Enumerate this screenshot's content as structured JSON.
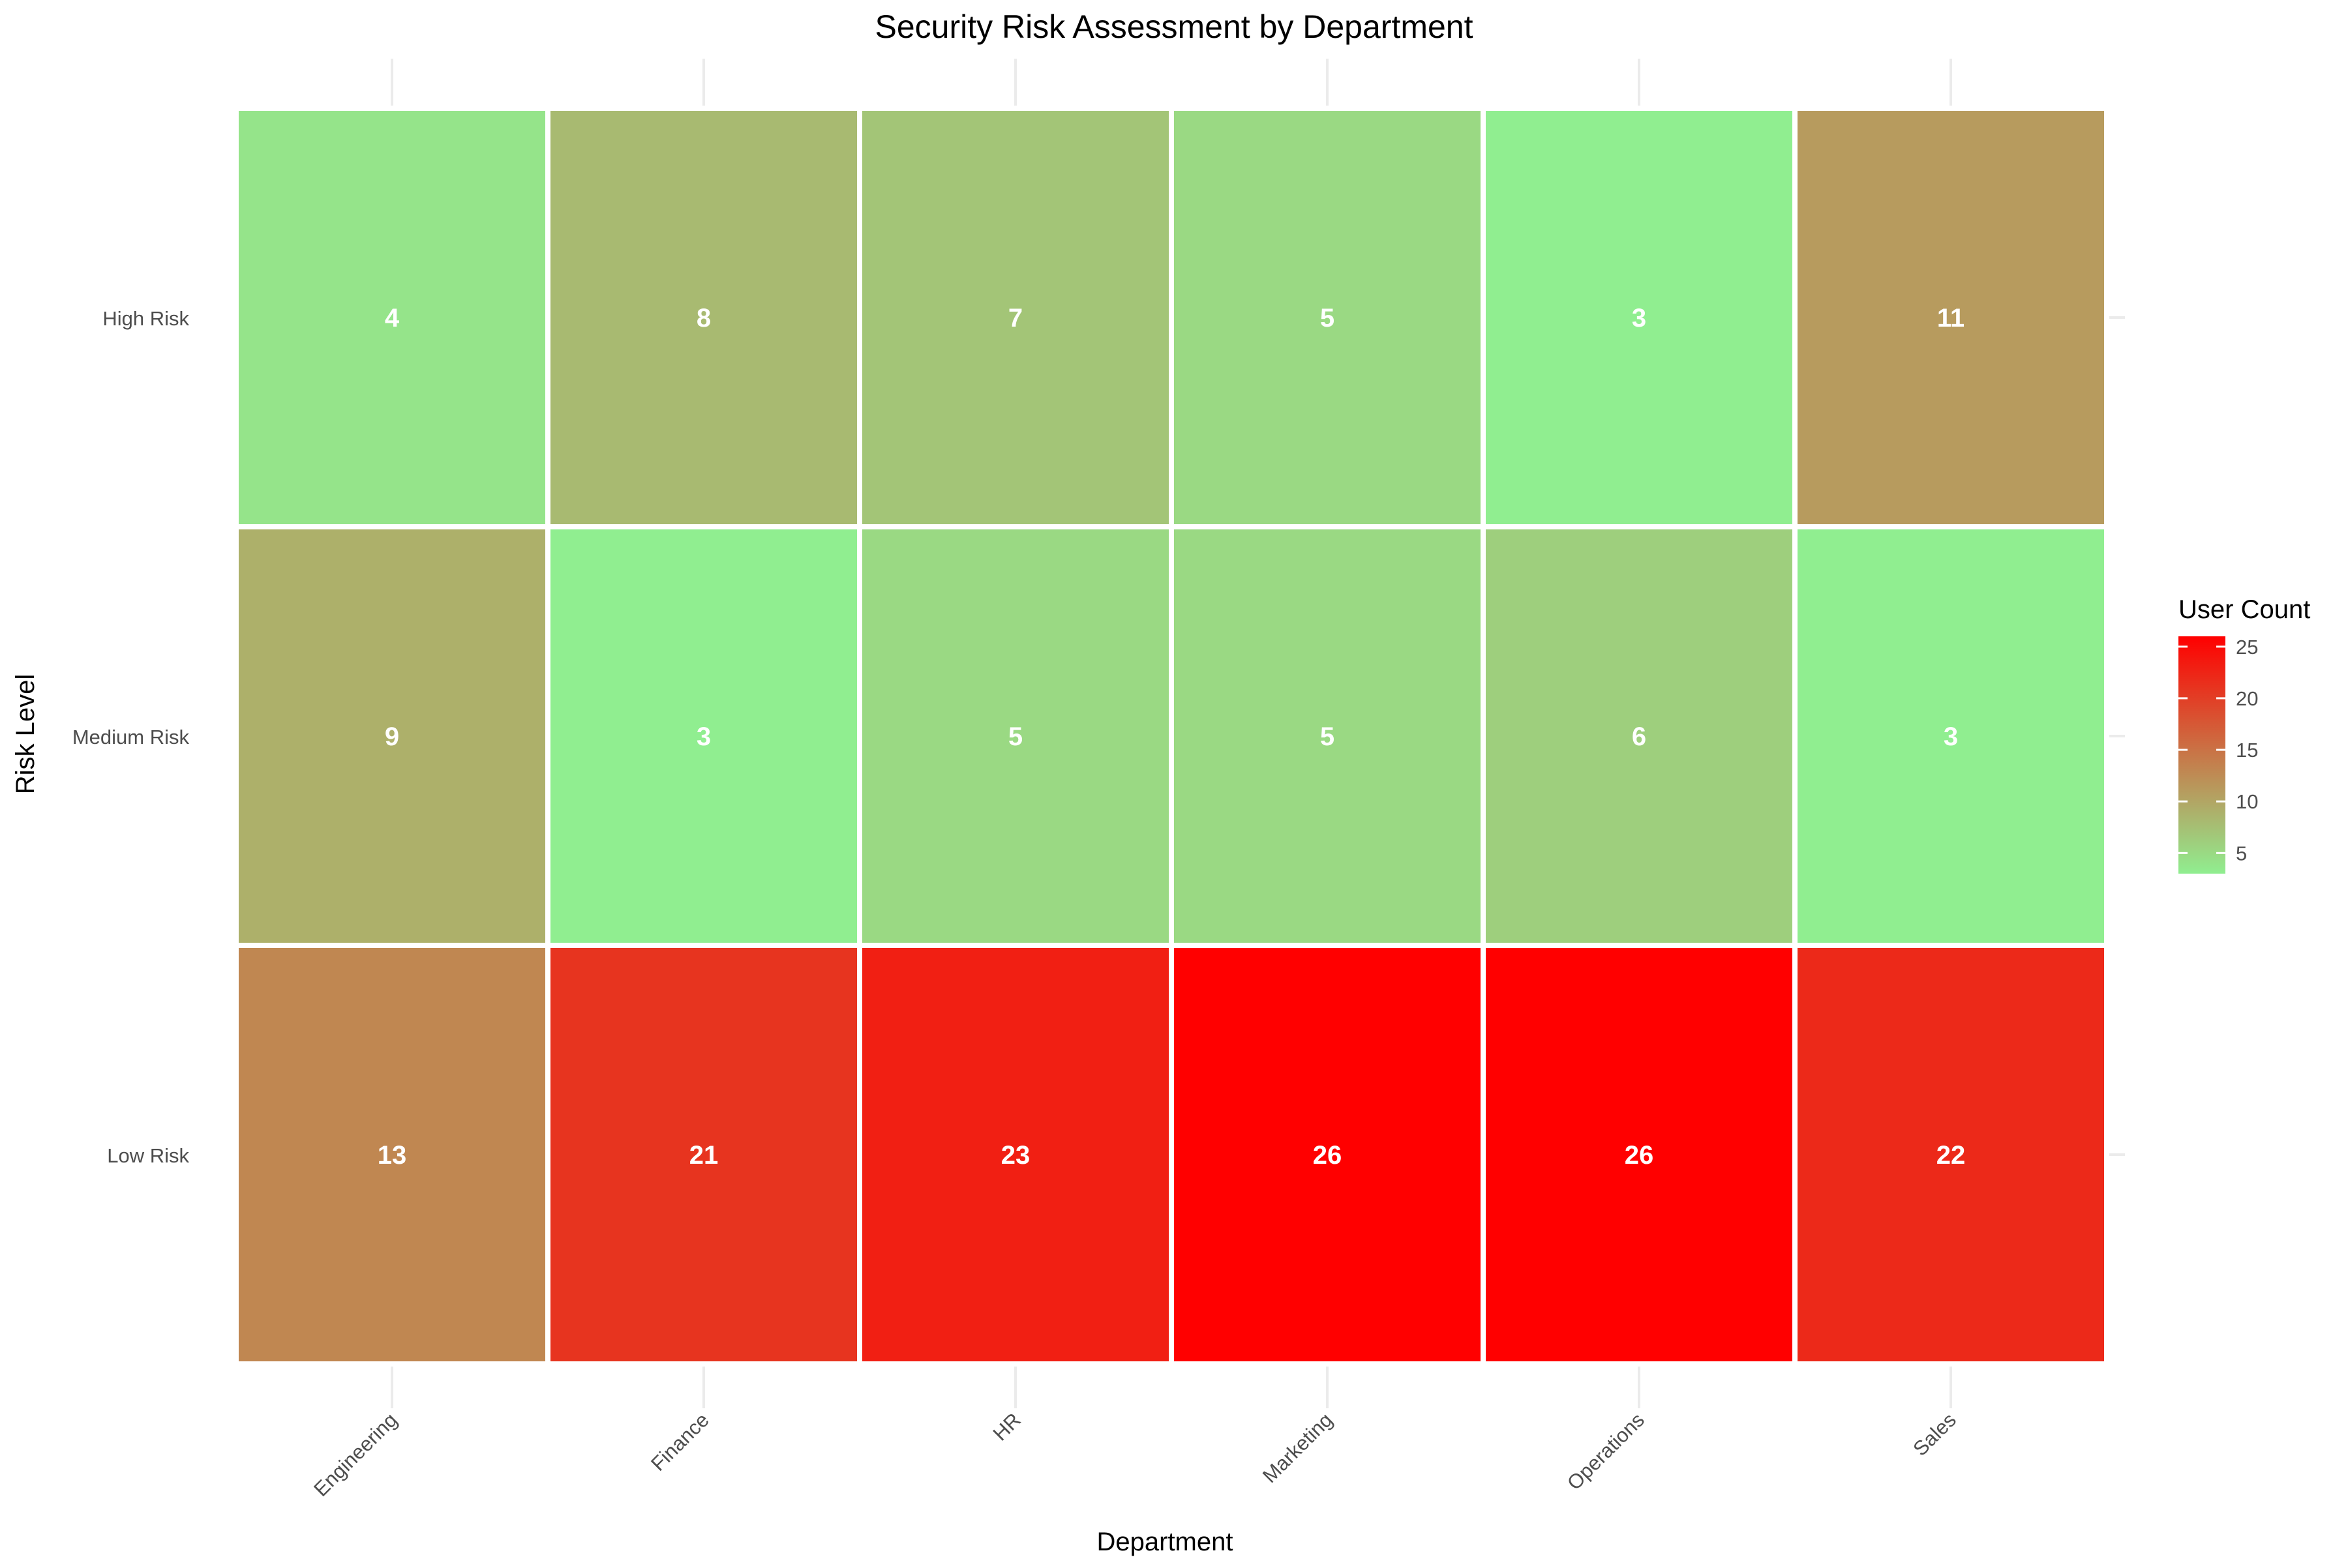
{
  "chart_data": {
    "type": "heatmap",
    "title": "Security Risk Assessment by Department",
    "xlabel": "Department",
    "ylabel": "Risk Level",
    "x_categories": [
      "Engineering",
      "Finance",
      "HR",
      "Marketing",
      "Operations",
      "Sales"
    ],
    "y_categories": [
      "High Risk",
      "Medium Risk",
      "Low Risk"
    ],
    "values": [
      [
        4,
        8,
        7,
        5,
        3,
        11
      ],
      [
        9,
        3,
        5,
        5,
        6,
        3
      ],
      [
        13,
        21,
        23,
        26,
        26,
        22
      ]
    ],
    "legend": {
      "title": "User Count",
      "position": "right",
      "ticks": [
        5,
        10,
        15,
        20,
        25
      ],
      "min": 3,
      "max": 26
    },
    "colors": {
      "low": "#90ee90",
      "high": "#ff0000",
      "label": "#ffffff",
      "grid": "#ebebeb"
    },
    "grid": true
  }
}
